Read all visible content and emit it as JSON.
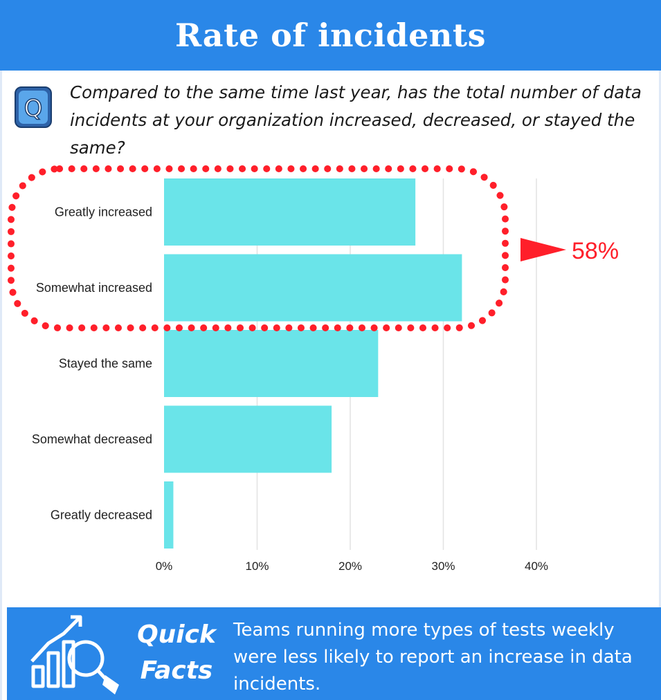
{
  "header": {
    "title": "Rate of incidents"
  },
  "question": {
    "icon_letter": "Q",
    "text": "Compared to the same time last year, has the total number of data incidents at your organization increased, decreased, or stayed the same?"
  },
  "chart_data": {
    "type": "bar",
    "orientation": "horizontal",
    "categories": [
      "Greatly increased",
      "Somewhat increased",
      "Stayed the same",
      "Somewhat decreased",
      "Greatly decreased"
    ],
    "values": [
      27,
      32,
      23,
      18,
      1
    ],
    "unit": "%",
    "xlim": [
      0,
      40
    ],
    "x_ticks": [
      "0%",
      "10%",
      "20%",
      "30%",
      "40%"
    ],
    "grid": "vertical",
    "bar_color": "#6ae4e9",
    "annotation": {
      "label": "58%",
      "covers": [
        "Greatly increased",
        "Somewhat increased"
      ],
      "style": "red dotted rounded outline with arrow",
      "color": "#ff1f2a"
    }
  },
  "footer": {
    "title": "Quick Facts",
    "icon": "chart-magnifier-icon",
    "text": "Teams running more types of tests weekly were less likely to report an increase in data incidents."
  },
  "colors": {
    "header_bg": "#2a87e8",
    "footer_bg": "#2a87e8",
    "accent_red": "#ff1f2a"
  }
}
